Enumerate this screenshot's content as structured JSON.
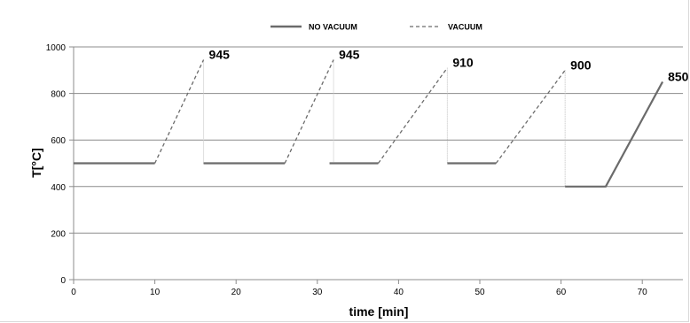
{
  "chart_data": {
    "type": "line",
    "title": "",
    "xlabel": "time [min]",
    "ylabel": "T[°C]",
    "xlim": [
      0,
      75
    ],
    "ylim": [
      0,
      1000
    ],
    "x_ticks": [
      0,
      10,
      20,
      30,
      40,
      50,
      60,
      70
    ],
    "y_ticks": [
      0,
      200,
      400,
      600,
      800,
      1000
    ],
    "grid": "horizontal",
    "legend_position": "top-center",
    "legend": [
      {
        "name": "NO VACUUM",
        "style": "solid",
        "color": "#6b6b6b"
      },
      {
        "name": "VACUUM",
        "style": "dashed",
        "color": "#6b6b6b"
      }
    ],
    "series": [
      {
        "name": "NO VACUUM",
        "style": "solid",
        "segments": [
          [
            [
              0,
              500
            ],
            [
              10,
              500
            ]
          ],
          [
            [
              16,
              500
            ],
            [
              26,
              500
            ]
          ],
          [
            [
              31.5,
              500
            ],
            [
              37.5,
              500
            ]
          ],
          [
            [
              46,
              500
            ],
            [
              52,
              500
            ]
          ],
          [
            [
              60.5,
              400
            ],
            [
              65.5,
              400
            ],
            [
              72.5,
              850
            ]
          ]
        ]
      },
      {
        "name": "VACUUM",
        "style": "dashed",
        "segments": [
          [
            [
              10,
              500
            ],
            [
              16,
              945
            ]
          ],
          [
            [
              26,
              500
            ],
            [
              32,
              945
            ]
          ],
          [
            [
              37.5,
              500
            ],
            [
              46,
              910
            ]
          ],
          [
            [
              52,
              500
            ],
            [
              60.5,
              900
            ]
          ]
        ]
      }
    ],
    "drops": [
      {
        "x": 16,
        "from": 945,
        "to": 500
      },
      {
        "x": 32,
        "from": 945,
        "to": 500
      },
      {
        "x": 46,
        "from": 910,
        "to": 500
      },
      {
        "x": 60.5,
        "from": 900,
        "to": 400
      }
    ],
    "annotations": [
      {
        "text": "945",
        "x": 16,
        "y": 945
      },
      {
        "text": "945",
        "x": 32,
        "y": 945
      },
      {
        "text": "910",
        "x": 46,
        "y": 910
      },
      {
        "text": "900",
        "x": 60.5,
        "y": 900
      },
      {
        "text": "850",
        "x": 72.5,
        "y": 850
      }
    ]
  }
}
